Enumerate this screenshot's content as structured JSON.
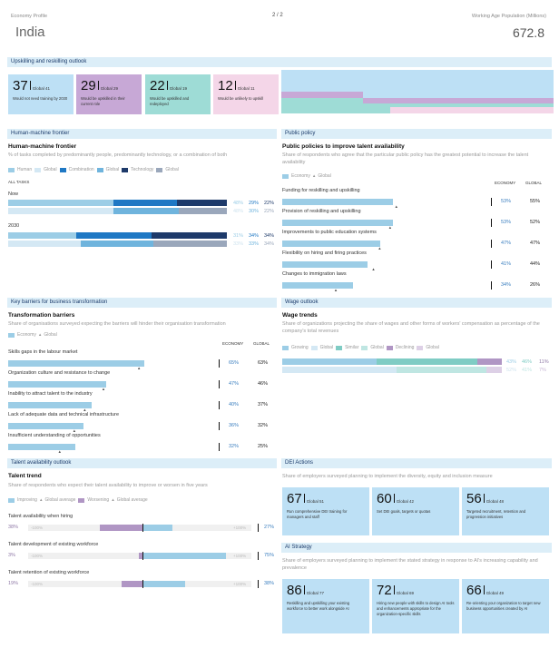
{
  "header": {
    "profile_label": "Economy Profile",
    "page": "2 / 2",
    "pop_label": "Working Age Population (Millions)",
    "country": "India",
    "population": "672.8"
  },
  "upskilling": {
    "title": "Upskilling and reskilling outlook",
    "cards": [
      {
        "value": "37",
        "global": "Global 41",
        "text": "Would not need training by 2030",
        "color": "#bde0f5"
      },
      {
        "value": "29",
        "global": "Global 29",
        "text": "Would be upskilled in their current role",
        "color": "#c7a8d6"
      },
      {
        "value": "22",
        "global": "Global 19",
        "text": "Would be upskilled and redeployed",
        "color": "#9edcd6"
      },
      {
        "value": "12",
        "global": "Global 11",
        "text": "Would be unlikely to upskill",
        "color": "#f4d6e8"
      }
    ]
  },
  "hmf": {
    "section": "Human-machine frontier",
    "title": "Human-machine frontier",
    "desc": "% of tasks completed by predominantly people, predominantly technology, or a combination of both",
    "legend": [
      "Human",
      "Global",
      "Combination",
      "Global",
      "Technology",
      "Global"
    ],
    "all_tasks": "ALL TASKS",
    "now": "Now",
    "y2030": "2030",
    "now_vals": [
      "48%",
      "29%",
      "22%"
    ],
    "now_glob": [
      "48%",
      "30%",
      "22%"
    ],
    "f_vals": [
      "31%",
      "34%",
      "34%"
    ],
    "f_glob": [
      "33%",
      "33%",
      "34%"
    ]
  },
  "policy": {
    "section": "Public policy",
    "title": "Public policies to improve talent availability",
    "desc": "Share of respondents who agree that the particular public policy has the greatest potential to increase the talent availability",
    "legend": [
      "Economy",
      "Global"
    ],
    "col_eco": "ECONOMY",
    "col_glob": "GLOBAL",
    "items": [
      {
        "label": "Funding for reskilling and upskilling",
        "eco": "53%",
        "glob": "55%",
        "v": 53,
        "g": 55
      },
      {
        "label": "Provision of reskilling and upskilling",
        "eco": "53%",
        "glob": "52%",
        "v": 53,
        "g": 52
      },
      {
        "label": "Improvements to public education systems",
        "eco": "47%",
        "glob": "47%",
        "v": 47,
        "g": 47
      },
      {
        "label": "Flexibility on hiring and firing practices",
        "eco": "41%",
        "glob": "44%",
        "v": 41,
        "g": 44
      },
      {
        "label": "Changes to immigration laws",
        "eco": "34%",
        "glob": "26%",
        "v": 34,
        "g": 26
      }
    ]
  },
  "barriers": {
    "section": "Key barriers for business transformation",
    "title": "Transformation barriers",
    "desc": "Share of organisations surveyed expecting the barriers will hinder their organisation transformation",
    "legend": [
      "Economy",
      "Global"
    ],
    "col_eco": "ECONOMY",
    "col_glob": "GLOBAL",
    "items": [
      {
        "label": "Skills gaps in the labour market",
        "eco": "65%",
        "glob": "63%",
        "v": 65,
        "g": 63
      },
      {
        "label": "Organization culture and resistance to change",
        "eco": "47%",
        "glob": "46%",
        "v": 47,
        "g": 46
      },
      {
        "label": "Inability to attract talent to the industry",
        "eco": "40%",
        "glob": "37%",
        "v": 40,
        "g": 37
      },
      {
        "label": "Lack of adequate data and technical infrastructure",
        "eco": "36%",
        "glob": "32%",
        "v": 36,
        "g": 32
      },
      {
        "label": "Insufficient understanding of opportunities",
        "eco": "32%",
        "glob": "25%",
        "v": 32,
        "g": 25
      }
    ]
  },
  "wage": {
    "section": "Wage outlook",
    "title": "Wage trends",
    "desc": "Share of organizations projecting the share of wages and other forms of workers' compensation as percentage of the company's total revenues",
    "legend": [
      "Growing",
      "Global",
      "Similar",
      "Global",
      "Declining",
      "Global"
    ],
    "eco": [
      "43%",
      "46%",
      "11%"
    ],
    "glob": [
      "52%",
      "41%",
      "7%"
    ]
  },
  "talent": {
    "section": "Talent availability outlook",
    "title": "Talent trend",
    "desc": "Share of respondents who expect their talent availability to improve or worsen in five years",
    "legend": [
      "Improving",
      "Global average",
      "Worsening",
      "Global average"
    ],
    "min": "-100%",
    "max": "+100%",
    "items": [
      {
        "label": "Talent availability when hiring",
        "worse": "38%",
        "improve": "27%",
        "w": 38,
        "i": 27
      },
      {
        "label": "Talent development of existing workforce",
        "worse": "3%",
        "improve": "75%",
        "w": 3,
        "i": 75
      },
      {
        "label": "Talent retention of existing workforce",
        "worse": "19%",
        "improve": "38%",
        "w": 19,
        "i": 38
      }
    ]
  },
  "dei": {
    "section": "DEI Actions",
    "desc": "Share of employers surveyed planning to implement the diversity, equity and inclusion measure",
    "cards": [
      {
        "value": "67",
        "global": "Global 51",
        "text": "Run comprehensive DEI training for managers and staff"
      },
      {
        "value": "60",
        "global": "Global 42",
        "text": "Set DEI goals, targets or quotas"
      },
      {
        "value": "56",
        "global": "Global 48",
        "text": "Targeted recruitment, retention and progression initiatives"
      }
    ]
  },
  "ai": {
    "section": "AI Strategy",
    "desc": "Share of employers surveyed planning to implement the stated strategy in response to AI's increasing capability and prevalence",
    "cards": [
      {
        "value": "86",
        "global": "Global 77",
        "text": "Reskilling and upskilling your existing workforce to better work alongside AI"
      },
      {
        "value": "72",
        "global": "Global 69",
        "text": "Hiring new people with skills to design AI tools and enhancements appropriate for the organization-specific skills"
      },
      {
        "value": "66",
        "global": "Global 49",
        "text": "Re-orienting your organization to target new business opportunities created by AI"
      }
    ]
  }
}
